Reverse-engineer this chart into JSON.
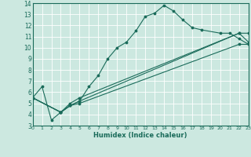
{
  "xlabel": "Humidex (Indice chaleur)",
  "xlim": [
    0,
    23
  ],
  "ylim": [
    3,
    14
  ],
  "xticks": [
    0,
    1,
    2,
    3,
    4,
    5,
    6,
    7,
    8,
    9,
    10,
    11,
    12,
    13,
    14,
    15,
    16,
    17,
    18,
    19,
    20,
    21,
    22,
    23
  ],
  "yticks": [
    3,
    4,
    5,
    6,
    7,
    8,
    9,
    10,
    11,
    12,
    13,
    14
  ],
  "bg_color": "#cce8e0",
  "line_color": "#1a6b5a",
  "grid_color": "#ffffff",
  "series": [
    {
      "x": [
        0,
        1,
        2,
        3,
        4,
        5,
        6,
        7,
        8,
        9,
        10,
        11,
        12,
        13,
        14,
        15,
        16,
        17,
        18,
        20,
        21,
        22,
        23
      ],
      "y": [
        5.5,
        6.5,
        3.5,
        4.2,
        4.8,
        5.2,
        6.5,
        7.5,
        9.0,
        10.0,
        10.5,
        11.5,
        12.8,
        13.1,
        13.8,
        13.3,
        12.5,
        11.8,
        11.6,
        11.3,
        11.3,
        10.8,
        10.3
      ]
    },
    {
      "x": [
        0,
        3,
        4,
        5,
        22,
        23
      ],
      "y": [
        5.5,
        4.2,
        4.8,
        5.0,
        10.3,
        10.3
      ]
    },
    {
      "x": [
        0,
        3,
        4,
        5,
        22,
        23
      ],
      "y": [
        5.5,
        4.2,
        4.8,
        5.2,
        11.3,
        11.3
      ]
    },
    {
      "x": [
        0,
        3,
        4,
        5,
        22,
        23
      ],
      "y": [
        5.5,
        4.2,
        5.0,
        5.5,
        11.3,
        10.5
      ]
    }
  ]
}
